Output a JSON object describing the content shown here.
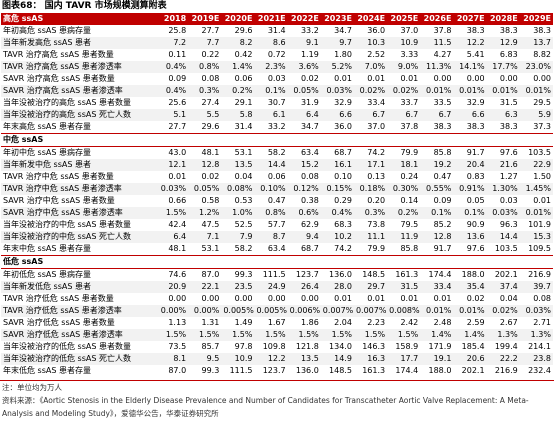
{
  "title": "图表68： 国内 TAVR 市场规模测算附表",
  "table": {
    "columns": [
      "2018",
      "2019E",
      "2020E",
      "2021E",
      "2022E",
      "2023E",
      "2024E",
      "2025E",
      "2026E",
      "2027E",
      "2028E",
      "2029E"
    ],
    "sections": [
      {
        "title": "高危 ssAS",
        "rows": [
          {
            "label": "年初高危 ssAS 患病存量",
            "values": [
              "25.8",
              "27.7",
              "29.6",
              "31.4",
              "33.2",
              "34.7",
              "36.0",
              "37.0",
              "37.8",
              "38.3",
              "38.3",
              "38.3"
            ]
          },
          {
            "label": "当年新发高危 ssAS 患者",
            "values": [
              "7.2",
              "7.7",
              "8.2",
              "8.6",
              "9.1",
              "9.7",
              "10.3",
              "10.9",
              "11.5",
              "12.2",
              "12.9",
              "13.7"
            ]
          },
          {
            "label": "TAVR 治疗高危 ssAS 患者数量",
            "values": [
              "0.11",
              "0.22",
              "0.42",
              "0.72",
              "1.19",
              "1.80",
              "2.52",
              "3.33",
              "4.27",
              "5.41",
              "6.83",
              "8.82"
            ]
          },
          {
            "label": "TAVR 治疗高危 ssAS 患者渗透率",
            "values": [
              "0.4%",
              "0.8%",
              "1.4%",
              "2.3%",
              "3.6%",
              "5.2%",
              "7.0%",
              "9.0%",
              "11.3%",
              "14.1%",
              "17.7%",
              "23.0%"
            ]
          },
          {
            "label": "SAVR 治疗高危 ssAS 患者数量",
            "values": [
              "0.09",
              "0.08",
              "0.06",
              "0.03",
              "0.02",
              "0.01",
              "0.01",
              "0.01",
              "0.00",
              "0.00",
              "0.00",
              "0.00"
            ]
          },
          {
            "label": "SAVR 治疗高危 ssAS 患者渗透率",
            "values": [
              "0.4%",
              "0.3%",
              "0.2%",
              "0.1%",
              "0.05%",
              "0.03%",
              "0.02%",
              "0.02%",
              "0.01%",
              "0.01%",
              "0.01%",
              "0.01%"
            ]
          },
          {
            "label": "当年没被治疗的高危 ssAS 患者数量",
            "values": [
              "25.6",
              "27.4",
              "29.1",
              "30.7",
              "31.9",
              "32.9",
              "33.4",
              "33.7",
              "33.5",
              "32.9",
              "31.5",
              "29.5"
            ]
          },
          {
            "label": "当年没被治疗的高危 ssAS 死亡人数",
            "values": [
              "5.1",
              "5.5",
              "5.8",
              "6.1",
              "6.4",
              "6.6",
              "6.7",
              "6.7",
              "6.7",
              "6.6",
              "6.3",
              "5.9"
            ]
          },
          {
            "label": "年末高危 ssAS 患者存量",
            "values": [
              "27.7",
              "29.6",
              "31.4",
              "33.2",
              "34.7",
              "36.0",
              "37.0",
              "37.8",
              "38.3",
              "38.3",
              "38.3",
              "37.3"
            ]
          }
        ]
      },
      {
        "title": "中危 ssAS",
        "rows": [
          {
            "label": "年初中危 ssAS 患病存量",
            "values": [
              "43.0",
              "48.1",
              "53.1",
              "58.2",
              "63.4",
              "68.7",
              "74.2",
              "79.9",
              "85.8",
              "91.7",
              "97.6",
              "103.5"
            ]
          },
          {
            "label": "当年新发中危 ssAS 患者",
            "values": [
              "12.1",
              "12.8",
              "13.5",
              "14.4",
              "15.2",
              "16.1",
              "17.1",
              "18.1",
              "19.2",
              "20.4",
              "21.6",
              "22.9"
            ]
          },
          {
            "label": "TAVR 治疗中危 ssAS 患者数量",
            "values": [
              "0.01",
              "0.02",
              "0.04",
              "0.06",
              "0.08",
              "0.10",
              "0.13",
              "0.24",
              "0.47",
              "0.83",
              "1.27",
              "1.50"
            ]
          },
          {
            "label": "TAVR 治疗中危 ssAS 患者渗透率",
            "values": [
              "0.03%",
              "0.05%",
              "0.08%",
              "0.10%",
              "0.12%",
              "0.15%",
              "0.18%",
              "0.30%",
              "0.55%",
              "0.91%",
              "1.30%",
              "1.45%"
            ]
          },
          {
            "label": "SAVR 治疗中危 ssAS 患者数量",
            "values": [
              "0.66",
              "0.58",
              "0.53",
              "0.47",
              "0.38",
              "0.29",
              "0.20",
              "0.14",
              "0.09",
              "0.05",
              "0.03",
              "0.01"
            ]
          },
          {
            "label": "SAVR 治疗中危 ssAS 患者渗透率",
            "values": [
              "1.5%",
              "1.2%",
              "1.0%",
              "0.8%",
              "0.6%",
              "0.4%",
              "0.3%",
              "0.2%",
              "0.1%",
              "0.1%",
              "0.03%",
              "0.01%"
            ]
          },
          {
            "label": "当年没被治疗的中危 ssAS 患者数量",
            "values": [
              "42.4",
              "47.5",
              "52.5",
              "57.7",
              "62.9",
              "68.3",
              "73.8",
              "79.5",
              "85.2",
              "90.9",
              "96.3",
              "101.9"
            ]
          },
          {
            "label": "当年没被治疗的中危 ssAS 死亡人数",
            "values": [
              "6.4",
              "7.1",
              "7.9",
              "8.7",
              "9.4",
              "10.2",
              "11.1",
              "11.9",
              "12.8",
              "13.6",
              "14.4",
              "15.3"
            ]
          },
          {
            "label": "年末中危 ssAS 患者存量",
            "values": [
              "48.1",
              "53.1",
              "58.2",
              "63.4",
              "68.7",
              "74.2",
              "79.9",
              "85.8",
              "91.7",
              "97.6",
              "103.5",
              "109.5"
            ]
          }
        ]
      },
      {
        "title": "低危 ssAS",
        "rows": [
          {
            "label": "年初低危 ssAS 患病存量",
            "values": [
              "74.6",
              "87.0",
              "99.3",
              "111.5",
              "123.7",
              "136.0",
              "148.5",
              "161.3",
              "174.4",
              "188.0",
              "202.1",
              "216.9"
            ]
          },
          {
            "label": "当年新发低危 ssAS 患者",
            "values": [
              "20.9",
              "22.1",
              "23.5",
              "24.9",
              "26.4",
              "28.0",
              "29.7",
              "31.5",
              "33.4",
              "35.4",
              "37.4",
              "39.7"
            ]
          },
          {
            "label": "TAVR 治疗低危 ssAS 患者数量",
            "values": [
              "0.00",
              "0.00",
              "0.00",
              "0.00",
              "0.00",
              "0.01",
              "0.01",
              "0.01",
              "0.01",
              "0.02",
              "0.04",
              "0.08"
            ]
          },
          {
            "label": "TAVR 治疗低危 ssAS 患者渗透率",
            "values": [
              "0.00%",
              "0.00%",
              "0.005%",
              "0.005%",
              "0.006%",
              "0.007%",
              "0.007%",
              "0.008%",
              "0.01%",
              "0.01%",
              "0.02%",
              "0.03%"
            ]
          },
          {
            "label": "SAVR 治疗低危 ssAS 患者数量",
            "values": [
              "1.13",
              "1.31",
              "1.49",
              "1.67",
              "1.86",
              "2.04",
              "2.23",
              "2.42",
              "2.48",
              "2.59",
              "2.67",
              "2.71"
            ]
          },
          {
            "label": "SAVR 治疗低危 ssAS 患者渗透率",
            "values": [
              "1.5%",
              "1.5%",
              "1.5%",
              "1.5%",
              "1.5%",
              "1.5%",
              "1.5%",
              "1.5%",
              "1.4%",
              "1.4%",
              "1.3%",
              "1.3%"
            ]
          },
          {
            "label": "当年没被治疗的低危 ssAS 患者数量",
            "values": [
              "73.5",
              "85.7",
              "97.8",
              "109.8",
              "121.8",
              "134.0",
              "146.3",
              "158.9",
              "171.9",
              "185.4",
              "199.4",
              "214.1"
            ]
          },
          {
            "label": "当年没被治疗的低危 ssAS 死亡人数",
            "values": [
              "8.1",
              "9.5",
              "10.9",
              "12.2",
              "13.5",
              "14.9",
              "16.3",
              "17.7",
              "19.1",
              "20.6",
              "22.2",
              "23.8"
            ]
          },
          {
            "label": "年末低危 ssAS 患者存量",
            "values": [
              "87.0",
              "99.3",
              "111.5",
              "123.7",
              "136.0",
              "148.5",
              "161.3",
              "174.4",
              "188.0",
              "202.1",
              "216.9",
              "232.4"
            ]
          }
        ]
      }
    ]
  },
  "note": "注：单位均为万人",
  "source": "资料来源：《Aortic Stenosis in the Elderly Disease Prevalence and Number of Candidates for Transcatheter Aortic Valve Replacement: A Meta-Analysis and Modeling Study》，爱德华公告，华泰证券研究所"
}
